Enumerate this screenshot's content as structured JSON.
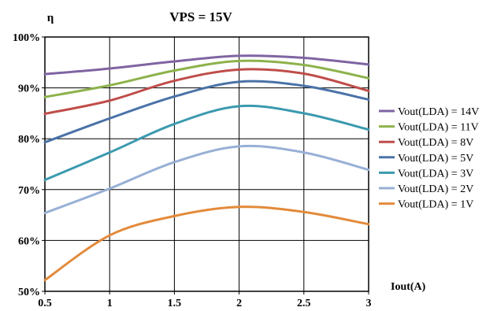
{
  "chart_data": {
    "type": "line",
    "title": "VPS = 15V",
    "ylabel": "η",
    "xlabel": "Iout(A)",
    "x": [
      0.5,
      1,
      1.5,
      2,
      2.5,
      3
    ],
    "xlim": [
      0.5,
      3
    ],
    "ylim": [
      50,
      100
    ],
    "x_ticks": [
      "0.5",
      "1",
      "1.5",
      "2",
      "2.5",
      "3"
    ],
    "y_ticks": [
      "50%",
      "60%",
      "70%",
      "80%",
      "90%",
      "100%"
    ],
    "grid": true,
    "legend_position": "right",
    "series": [
      {
        "name": "Vout(LDA) = 14V",
        "color": "#7f64a2",
        "values": [
          92.7,
          93.8,
          95.2,
          96.3,
          95.9,
          94.6
        ]
      },
      {
        "name": "Vout(LDA) = 11V",
        "color": "#8db24b",
        "values": [
          88.2,
          90.5,
          93.4,
          95.3,
          94.5,
          91.9
        ]
      },
      {
        "name": "Vout(LDA) = 8V",
        "color": "#bf4d4a",
        "values": [
          84.9,
          87.5,
          91.4,
          93.6,
          92.8,
          89.4
        ]
      },
      {
        "name": "Vout(LDA) = 5V",
        "color": "#4a72a8",
        "values": [
          79.3,
          84.0,
          88.3,
          91.2,
          90.4,
          87.7
        ]
      },
      {
        "name": "Vout(LDA) = 3V",
        "color": "#3b9aaf",
        "values": [
          71.9,
          77.3,
          82.9,
          86.4,
          85.0,
          81.8
        ]
      },
      {
        "name": "Vout(LDA) = 2V",
        "color": "#98b0d6",
        "values": [
          65.4,
          70.2,
          75.4,
          78.5,
          77.3,
          73.9
        ]
      },
      {
        "name": "Vout(LDA) = 1V",
        "color": "#e38a3a",
        "values": [
          52.2,
          61.0,
          64.8,
          66.6,
          65.6,
          63.2
        ]
      }
    ]
  }
}
